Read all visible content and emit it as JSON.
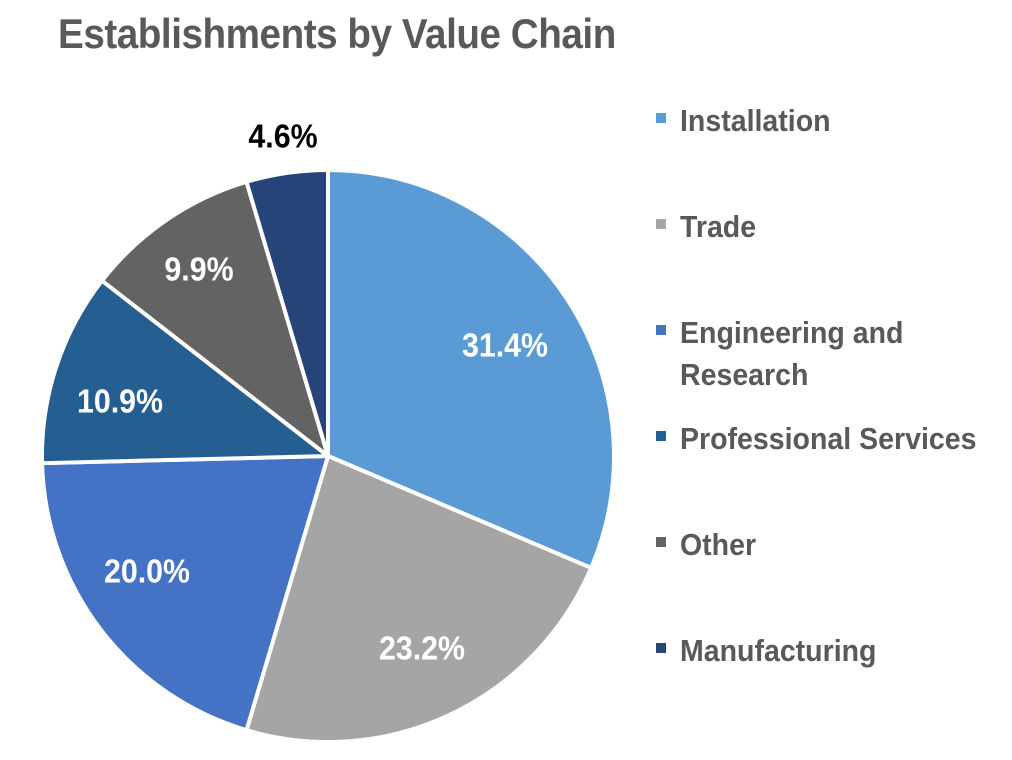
{
  "chart_data": {
    "type": "pie",
    "title": "Establishments by Value Chain",
    "categories": [
      "Installation",
      "Trade",
      "Engineering and Research",
      "Professional Services",
      "Other",
      "Manufacturing"
    ],
    "values": [
      31.4,
      23.2,
      20.0,
      10.9,
      9.9,
      4.6
    ],
    "labels": [
      "31.4%",
      "23.2%",
      "20.0%",
      "10.9%",
      "9.9%",
      "4.6%"
    ],
    "legend_labels": [
      "Installation",
      "Trade",
      "Engineering and\nResearch",
      "Professional Services",
      "Other",
      "Manufacturing"
    ],
    "colors": [
      "#5b9bd5",
      "#a5a5a5",
      "#4472c4",
      "#255e91",
      "#636363",
      "#264478"
    ],
    "label_colors": [
      "#ffffff",
      "#ffffff",
      "#ffffff",
      "#ffffff",
      "#ffffff",
      "#000000"
    ],
    "legend_position": "right",
    "start_angle": "top, clockwise"
  }
}
